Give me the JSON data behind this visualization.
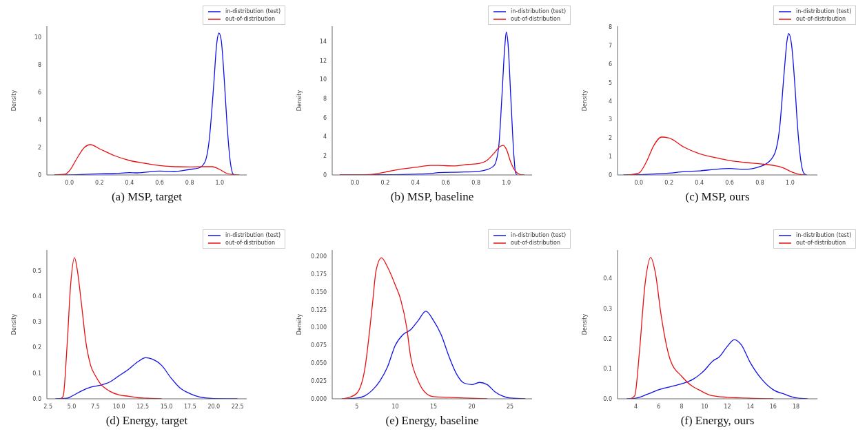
{
  "chart_data": [
    {
      "type": "line",
      "title": "(a) MSP, target",
      "ylabel": "Density",
      "legend": "top right",
      "xlim": [
        -0.15,
        1.18
      ],
      "ylim": [
        0,
        10.8
      ],
      "xticks": [
        {
          "value": 0,
          "label": "0.0"
        },
        {
          "value": 0.2,
          "label": "0.2"
        },
        {
          "value": 0.4,
          "label": "0.4"
        },
        {
          "value": 0.6,
          "label": "0.6"
        },
        {
          "value": 0.8,
          "label": "0.8"
        },
        {
          "value": 1,
          "label": "1.0"
        }
      ],
      "yticks": [
        0,
        2,
        4,
        6,
        8,
        10
      ],
      "series": [
        {
          "name": "in-distribution (test)",
          "color": "#1010e8",
          "x": [
            -0.1,
            0,
            0.2,
            0.3,
            0.4,
            0.45,
            0.6,
            0.7,
            0.8,
            0.86,
            0.9,
            0.93,
            0.96,
            0.98,
            0.995,
            1.01,
            1.03,
            1.05,
            1.07,
            1.09,
            1.1
          ],
          "values": [
            0,
            0.01,
            0.08,
            0.1,
            0.17,
            0.15,
            0.28,
            0.25,
            0.4,
            0.5,
            0.9,
            2.5,
            6.5,
            9.5,
            10.3,
            9.8,
            7,
            3.5,
            1,
            0.05,
            0
          ]
        },
        {
          "name": "out-of-distribution",
          "color": "#e81010",
          "x": [
            -0.1,
            -0.03,
            0,
            0.05,
            0.1,
            0.14,
            0.2,
            0.3,
            0.4,
            0.5,
            0.6,
            0.7,
            0.8,
            0.9,
            0.95,
            1.0,
            1.05,
            1.1,
            1.13
          ],
          "values": [
            0,
            0.05,
            0.3,
            1.2,
            2.0,
            2.2,
            1.9,
            1.4,
            1.05,
            0.85,
            0.68,
            0.6,
            0.58,
            0.6,
            0.6,
            0.4,
            0.1,
            0.02,
            0
          ]
        }
      ]
    },
    {
      "type": "line",
      "title": "(b) MSP, baseline",
      "ylabel": "Density",
      "legend": "top right",
      "xlim": [
        -0.15,
        1.17
      ],
      "ylim": [
        0,
        15.6
      ],
      "xticks": [
        {
          "value": 0,
          "label": "0.0"
        },
        {
          "value": 0.2,
          "label": "0.2"
        },
        {
          "value": 0.4,
          "label": "0.4"
        },
        {
          "value": 0.6,
          "label": "0.6"
        },
        {
          "value": 0.8,
          "label": "0.8"
        },
        {
          "value": 1,
          "label": "1.0"
        }
      ],
      "yticks": [
        0,
        2,
        4,
        6,
        8,
        10,
        12,
        14
      ],
      "series": [
        {
          "name": "in-distribution (test)",
          "color": "#1010e8",
          "x": [
            -0.1,
            0.2,
            0.4,
            0.5,
            0.55,
            0.7,
            0.8,
            0.88,
            0.92,
            0.95,
            0.97,
            0.99,
            1.0,
            1.01,
            1.03,
            1.05,
            1.06,
            1.07
          ],
          "values": [
            0,
            0.02,
            0.08,
            0.15,
            0.25,
            0.3,
            0.35,
            0.6,
            1.0,
            3,
            8,
            13.5,
            15,
            14,
            8,
            2,
            0.3,
            0
          ]
        },
        {
          "name": "out-of-distribution",
          "color": "#e81010",
          "x": [
            -0.1,
            0.1,
            0.2,
            0.3,
            0.4,
            0.5,
            0.55,
            0.65,
            0.75,
            0.82,
            0.87,
            0.92,
            0.96,
            0.98,
            1.0,
            1.03,
            1.06,
            1.09,
            1.12
          ],
          "values": [
            0,
            0.05,
            0.3,
            0.6,
            0.8,
            1.0,
            1.0,
            0.95,
            1.1,
            1.2,
            1.5,
            2.3,
            3.0,
            3.1,
            2.7,
            1.3,
            0.4,
            0.05,
            0
          ]
        }
      ]
    },
    {
      "type": "line",
      "title": "(c) MSP, ours",
      "ylabel": "Density",
      "legend": "top right",
      "xlim": [
        -0.14,
        1.18
      ],
      "ylim": [
        0,
        8.05
      ],
      "xticks": [
        {
          "value": 0,
          "label": "0.0"
        },
        {
          "value": 0.2,
          "label": "0.2"
        },
        {
          "value": 0.4,
          "label": "0.4"
        },
        {
          "value": 0.6,
          "label": "0.6"
        },
        {
          "value": 0.8,
          "label": "0.8"
        },
        {
          "value": 1,
          "label": "1.0"
        }
      ],
      "yticks": [
        0,
        1,
        2,
        3,
        4,
        5,
        6,
        7,
        8
      ],
      "series": [
        {
          "name": "in-distribution (test)",
          "color": "#1010e8",
          "x": [
            -0.1,
            0,
            0.1,
            0.2,
            0.3,
            0.4,
            0.5,
            0.6,
            0.7,
            0.8,
            0.85,
            0.9,
            0.93,
            0.96,
            0.98,
            0.99,
            1.01,
            1.03,
            1.05,
            1.07,
            1.09,
            1.11
          ],
          "values": [
            0,
            0.01,
            0.05,
            0.1,
            0.18,
            0.22,
            0.3,
            0.35,
            0.3,
            0.45,
            0.65,
            1.2,
            2.5,
            5.5,
            7.3,
            7.65,
            7,
            5,
            2.5,
            0.8,
            0.1,
            0
          ]
        },
        {
          "name": "out-of-distribution",
          "color": "#e81010",
          "x": [
            -0.08,
            0,
            0.05,
            0.1,
            0.15,
            0.2,
            0.3,
            0.4,
            0.5,
            0.6,
            0.7,
            0.8,
            0.9,
            0.95,
            1.0,
            1.05,
            1.1
          ],
          "values": [
            0,
            0.1,
            0.7,
            1.6,
            2.05,
            2.0,
            1.5,
            1.15,
            0.95,
            0.78,
            0.68,
            0.6,
            0.5,
            0.4,
            0.2,
            0.05,
            0
          ]
        }
      ]
    },
    {
      "type": "line",
      "title": "(d) Energy, target",
      "ylabel": "Density",
      "legend": "top right",
      "xlim": [
        2.38,
        23.47
      ],
      "ylim": [
        0,
        0.58
      ],
      "xticks": [
        2.5,
        {
          "value": 5,
          "label": "5.0"
        },
        7.5,
        {
          "value": 10,
          "label": "10.0"
        },
        12.5,
        {
          "value": 15,
          "label": "15.0"
        },
        17.5,
        {
          "value": 20,
          "label": "20.0"
        },
        22.5
      ],
      "yticks": [
        {
          "value": 0,
          "label": "0.0"
        },
        0.1,
        0.2,
        0.3,
        0.4,
        0.5
      ],
      "series": [
        {
          "name": "in-distribution (test)",
          "color": "#1010e8",
          "x": [
            3.3,
            4.5,
            5,
            6,
            7,
            8,
            9,
            10,
            11,
            12,
            12.8,
            13.5,
            14.5,
            15.5,
            16.5,
            17.5,
            18.5,
            20,
            22.5
          ],
          "values": [
            0,
            0.002,
            0.01,
            0.03,
            0.045,
            0.053,
            0.065,
            0.09,
            0.115,
            0.145,
            0.16,
            0.155,
            0.13,
            0.08,
            0.04,
            0.02,
            0.007,
            0.001,
            0
          ]
        },
        {
          "name": "out-of-distribution",
          "color": "#e81010",
          "x": [
            3.8,
            4.1,
            4.5,
            4.9,
            5.3,
            5.6,
            6,
            6.5,
            7,
            7.5,
            8,
            9,
            10,
            11,
            12,
            13,
            14.5
          ],
          "values": [
            0,
            0.01,
            0.2,
            0.45,
            0.55,
            0.5,
            0.38,
            0.22,
            0.13,
            0.09,
            0.06,
            0.03,
            0.015,
            0.01,
            0.004,
            0.002,
            0
          ]
        }
      ]
    },
    {
      "type": "line",
      "title": "(e) Energy, baseline",
      "ylabel": "Density",
      "legend": "top right",
      "xlim": [
        1.77,
        27.87
      ],
      "ylim": [
        0,
        0.209
      ],
      "xticks": [
        5,
        10,
        15,
        20,
        25
      ],
      "yticks": [
        {
          "value": 0,
          "label": "0.000"
        },
        {
          "value": 0.025,
          "label": "0.025"
        },
        {
          "value": 0.05,
          "label": "0.050"
        },
        {
          "value": 0.075,
          "label": "0.075"
        },
        {
          "value": 0.1,
          "label": "0.100"
        },
        {
          "value": 0.125,
          "label": "0.125"
        },
        {
          "value": 0.15,
          "label": "0.150"
        },
        {
          "value": 0.175,
          "label": "0.175"
        },
        {
          "value": 0.2,
          "label": "0.200"
        }
      ],
      "series": [
        {
          "name": "in-distribution (test)",
          "color": "#1010e8",
          "x": [
            3.5,
            5,
            6,
            7,
            8,
            9,
            10,
            11,
            12,
            13,
            14,
            15,
            16,
            17,
            18,
            19,
            20,
            21,
            22,
            23,
            24,
            25,
            27
          ],
          "values": [
            0,
            0.001,
            0.004,
            0.012,
            0.025,
            0.045,
            0.075,
            0.09,
            0.097,
            0.11,
            0.123,
            0.11,
            0.09,
            0.06,
            0.035,
            0.022,
            0.02,
            0.023,
            0.02,
            0.01,
            0.004,
            0.001,
            0
          ]
        },
        {
          "name": "out-of-distribution",
          "color": "#e81010",
          "x": [
            3,
            4,
            5,
            6,
            7,
            7.5,
            8.2,
            9,
            10,
            10.7,
            11.5,
            12,
            13,
            14,
            15,
            17,
            19,
            22
          ],
          "values": [
            0,
            0.002,
            0.008,
            0.04,
            0.13,
            0.18,
            0.198,
            0.185,
            0.16,
            0.14,
            0.1,
            0.06,
            0.025,
            0.008,
            0.003,
            0.002,
            0.001,
            0
          ]
        }
      ]
    },
    {
      "type": "line",
      "title": "(f) Energy, ours",
      "ylabel": "Density",
      "legend": "top right",
      "xlim": [
        2.4,
        19.86
      ],
      "ylim": [
        0,
        0.495
      ],
      "xticks": [
        4,
        6,
        8,
        10,
        12,
        14,
        16,
        18
      ],
      "yticks": [
        {
          "value": 0,
          "label": "0.0"
        },
        0.1,
        0.2,
        0.3,
        0.4
      ],
      "series": [
        {
          "name": "in-distribution (test)",
          "color": "#1010e8",
          "x": [
            3.2,
            4,
            5,
            6,
            7,
            8,
            9,
            10,
            10.7,
            11.3,
            12,
            12.6,
            13.2,
            14,
            15,
            16,
            17,
            18,
            19
          ],
          "values": [
            0,
            0.002,
            0.015,
            0.03,
            0.04,
            0.05,
            0.065,
            0.095,
            0.125,
            0.14,
            0.175,
            0.197,
            0.18,
            0.12,
            0.065,
            0.03,
            0.015,
            0.003,
            0
          ]
        },
        {
          "name": "out-of-distribution",
          "color": "#e81010",
          "x": [
            3.5,
            3.9,
            4.3,
            4.8,
            5.3,
            5.7,
            6.2,
            7,
            8,
            9,
            9.5,
            10.5,
            12,
            13,
            16
          ],
          "values": [
            0,
            0.01,
            0.15,
            0.38,
            0.47,
            0.42,
            0.28,
            0.13,
            0.075,
            0.04,
            0.03,
            0.012,
            0.005,
            0.003,
            0
          ]
        }
      ]
    }
  ]
}
